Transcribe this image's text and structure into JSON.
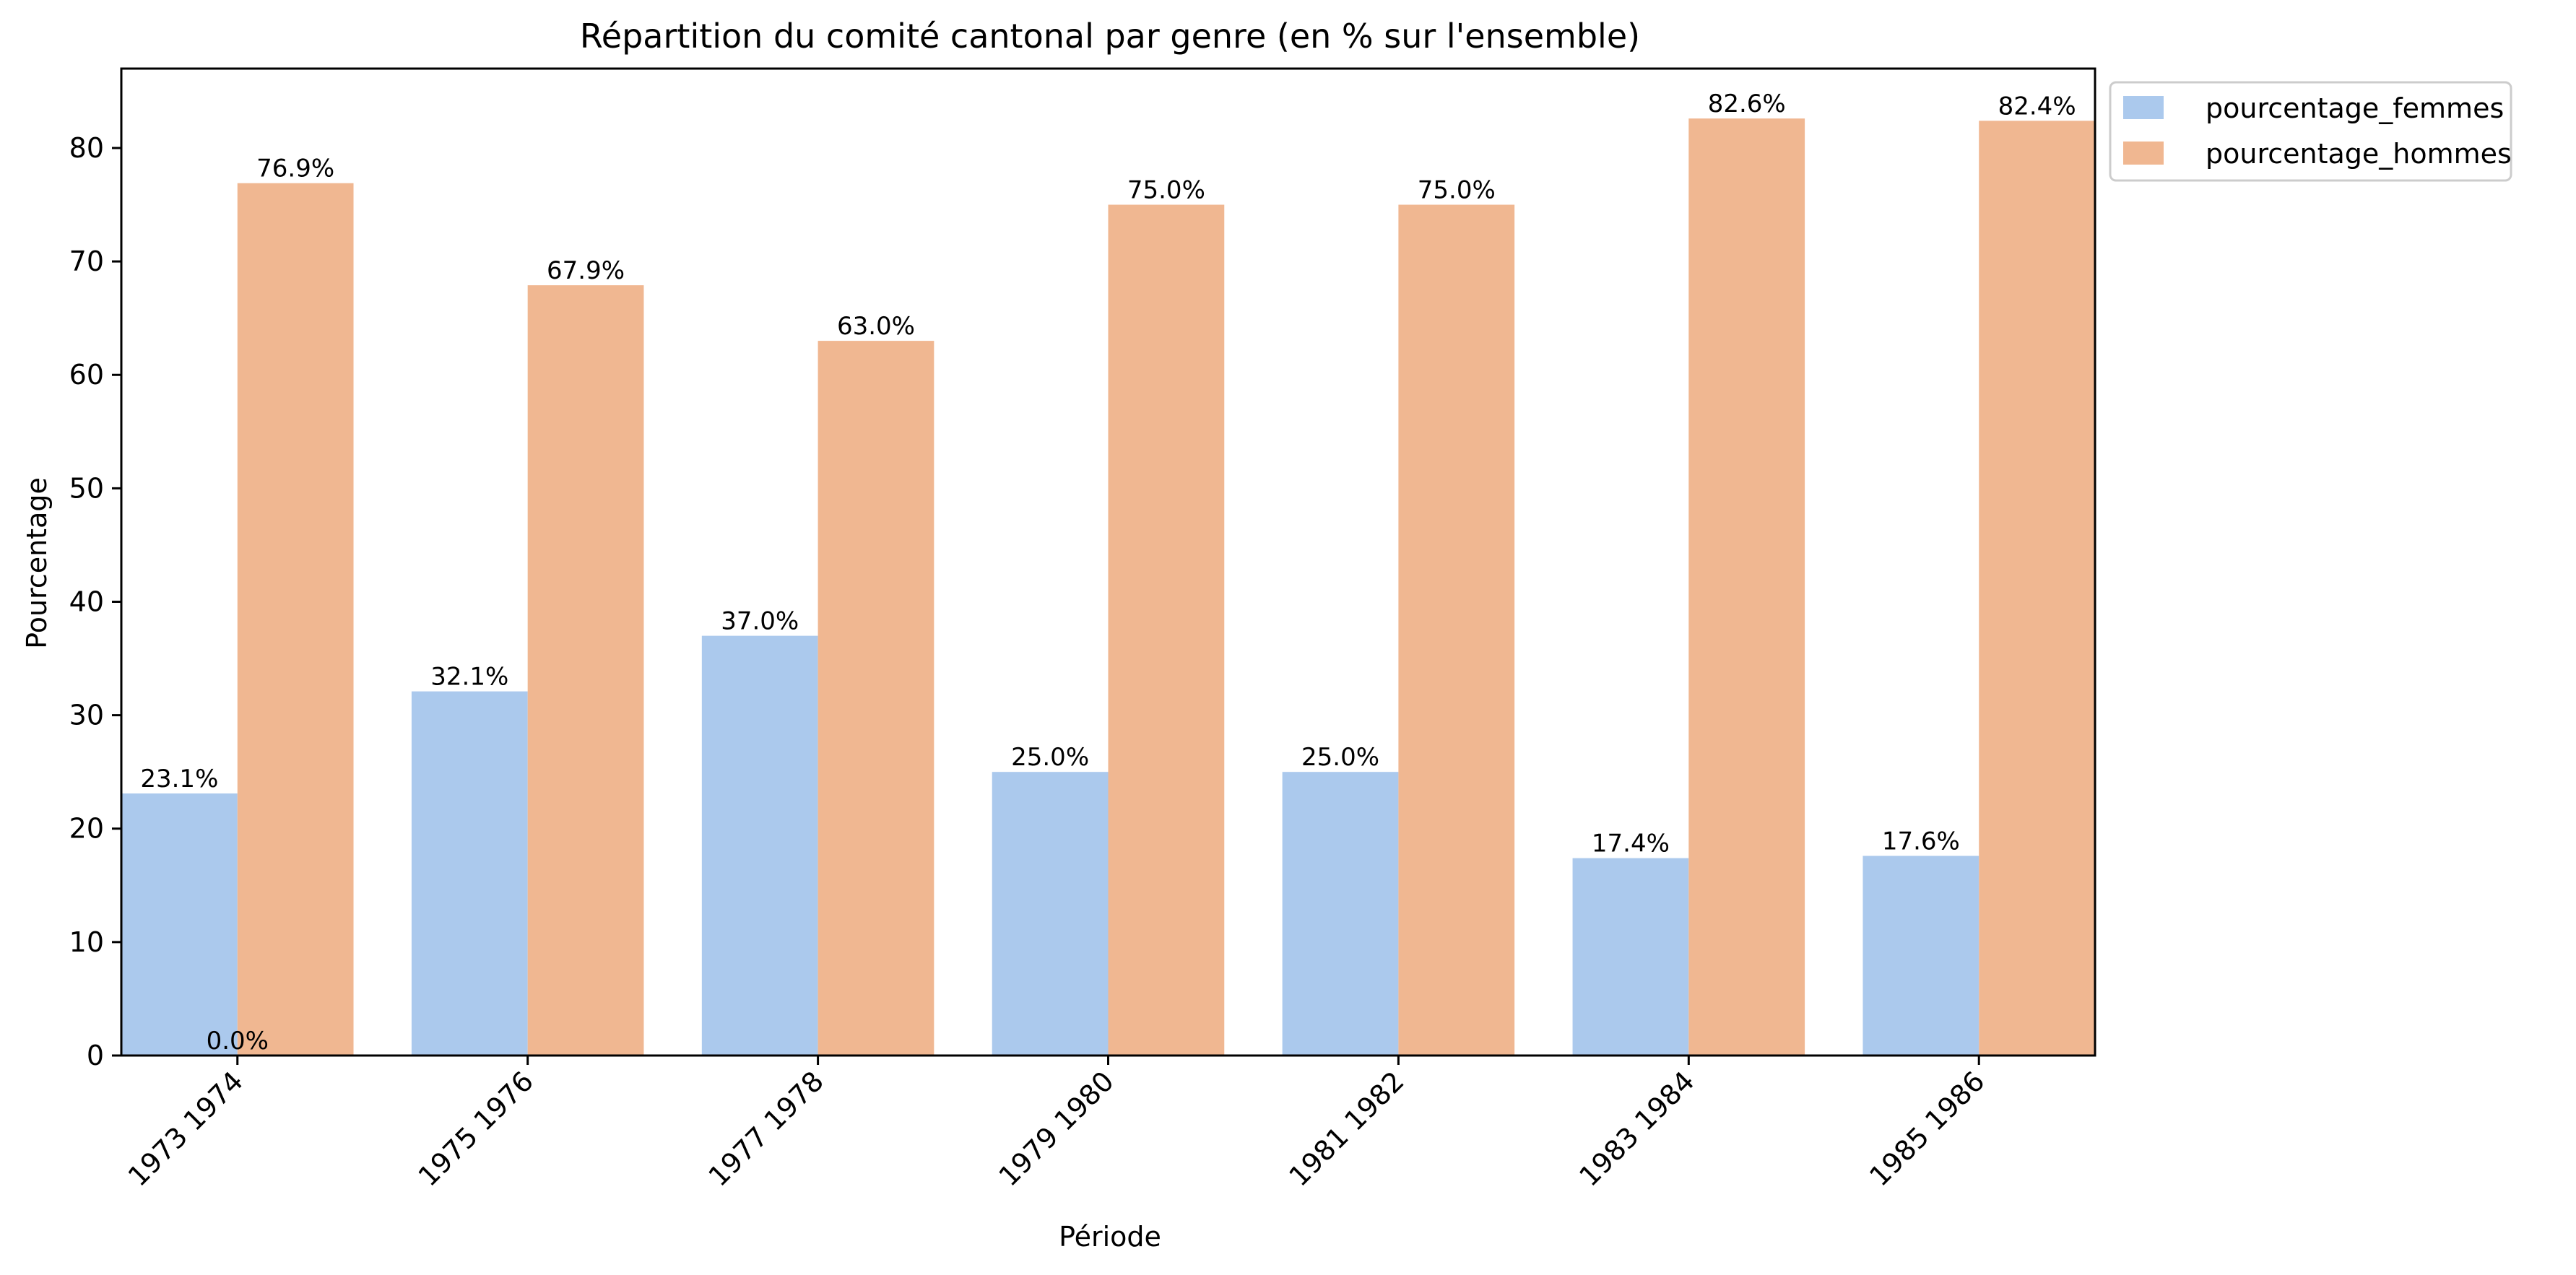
{
  "chart_data": {
    "type": "bar",
    "title": "Répartition du comité cantonal par genre  (en % sur l'ensemble)",
    "xlabel": "Période",
    "ylabel": "Pourcentage",
    "categories": [
      "1973 1974",
      "1975 1976",
      "1977 1978",
      "1979 1980",
      "1981 1982",
      "1983 1984",
      "1985 1986"
    ],
    "series": [
      {
        "name": "pourcentage_femmes",
        "color": "#abc9ed",
        "values": [
          23.1,
          32.1,
          37.0,
          25.0,
          25.0,
          17.4,
          17.6
        ],
        "labels": [
          "23.1%",
          "32.1%",
          "37.0%",
          "25.0%",
          "25.0%",
          "17.4%",
          "17.6%"
        ]
      },
      {
        "name": "pourcentage_hommes",
        "color": "#f0b791",
        "values": [
          76.9,
          67.9,
          63.0,
          75.0,
          75.0,
          82.6,
          82.4
        ],
        "labels": [
          "76.9%",
          "67.9%",
          "63.0%",
          "75.0%",
          "75.0%",
          "82.6%",
          "82.4%"
        ]
      }
    ],
    "extra_labels": [
      {
        "category": "1973 1974",
        "text": "0.0%",
        "value": 0
      }
    ],
    "ylim": [
      0,
      87
    ],
    "yticks": [
      0,
      10,
      20,
      30,
      40,
      50,
      60,
      70,
      80
    ],
    "grid": false,
    "legend_position": "outside-top-right"
  }
}
